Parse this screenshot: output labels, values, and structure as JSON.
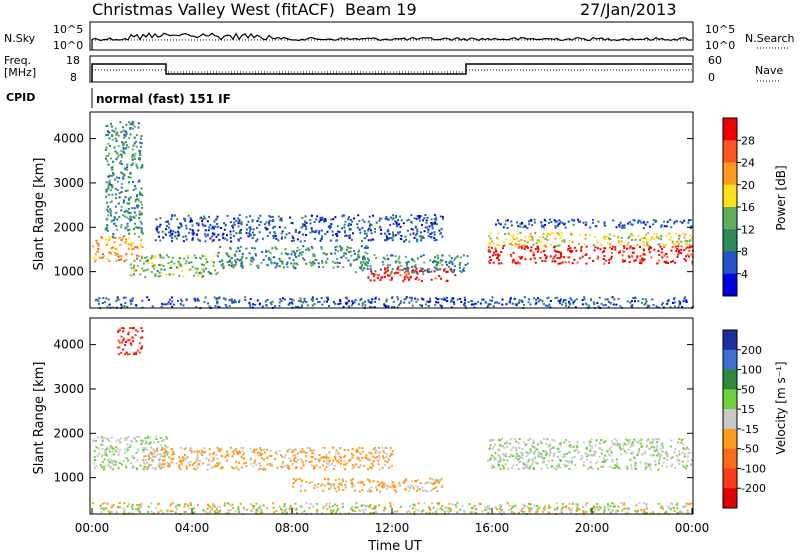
{
  "header": {
    "title": "Christmas Valley West (fitACF)",
    "beam": "Beam 19",
    "date": "27/Jan/2013"
  },
  "top_panels": {
    "nsky_label": "N.Sky",
    "nsky_ticks": [
      "10^5",
      "10^0"
    ],
    "nsearch_label": "N.Search",
    "nsearch_ticks": [
      "10^5",
      "10^0"
    ],
    "freq_label": "Freq.",
    "freq_unit": "[MHz]",
    "freq_ticks": [
      "18",
      "8"
    ],
    "nave_label": "Nave",
    "nave_ticks": [
      "60",
      "0"
    ],
    "cpid_label": "CPID",
    "cpid_value": "normal (fast) 151 IF"
  },
  "colors": {
    "velocity_positive": "#1f3fbf",
    "velocity_ground": "#c0c0bc",
    "velocity_negative": "#f29a1c"
  },
  "chart_data": [
    {
      "type": "heatmap",
      "title": "",
      "xlabel": "",
      "ylabel": "Slant Range [km]",
      "xlim": [
        "00:00",
        "00:00"
      ],
      "ylim": [
        180,
        4600
      ],
      "y_ticks": [
        "1000",
        "2000",
        "3000",
        "4000"
      ],
      "colorbar_label": "Power [dB]",
      "colorbar_ticks": [
        "4",
        "8",
        "12",
        "16",
        "20",
        "24",
        "28"
      ],
      "colorbar_colors": [
        "#0000dd",
        "#2255cc",
        "#2e8a5a",
        "#5fae5f",
        "#ffe21a",
        "#ff9a1a",
        "#ff5522",
        "#ee0000"
      ],
      "echo_regions": [
        {
          "t0": 0.0,
          "t1": 2.0,
          "r0": 1250,
          "r1": 1800,
          "level": 5
        },
        {
          "t0": 0.5,
          "t1": 2.0,
          "r0": 1800,
          "r1": 4400,
          "level": 2
        },
        {
          "t0": 1.5,
          "t1": 5.0,
          "r0": 900,
          "r1": 1400,
          "level": 3
        },
        {
          "t0": 5.0,
          "t1": 11.0,
          "r0": 1100,
          "r1": 1600,
          "level": 2
        },
        {
          "t0": 2.5,
          "t1": 14.0,
          "r0": 1700,
          "r1": 2300,
          "level": 1
        },
        {
          "t0": 11.0,
          "t1": 14.5,
          "r0": 800,
          "r1": 1100,
          "level": 7
        },
        {
          "t0": 10.5,
          "t1": 15.0,
          "r0": 1000,
          "r1": 1400,
          "level": 2
        },
        {
          "t0": 15.8,
          "t1": 24.0,
          "r0": 1200,
          "r1": 1600,
          "level": 7
        },
        {
          "t0": 15.8,
          "t1": 24.0,
          "r0": 1600,
          "r1": 1900,
          "level": 4
        },
        {
          "t0": 16.0,
          "t1": 24.0,
          "r0": 2000,
          "r1": 2200,
          "level": 1
        },
        {
          "t0": 0.0,
          "t1": 24.0,
          "r0": 200,
          "r1": 450,
          "level": 1
        }
      ]
    },
    {
      "type": "heatmap",
      "title": "",
      "xlabel": "Time UT",
      "ylabel": "Slant Range [km]",
      "x_ticks": [
        "00:00",
        "04:00",
        "08:00",
        "12:00",
        "16:00",
        "20:00",
        "00:00"
      ],
      "ylim": [
        180,
        4600
      ],
      "y_ticks": [
        "1000",
        "2000",
        "3000",
        "4000"
      ],
      "colorbar_label": "Velocity [m s⁻¹]",
      "colorbar_ticks": [
        "200",
        "100",
        "50",
        "15",
        "-15",
        "-50",
        "-100",
        "-200"
      ],
      "colorbar_colors": [
        "#1c2fa0",
        "#3d6fd0",
        "#2e8a3a",
        "#6ccf3c",
        "#c8c8c8",
        "#ff9a1a",
        "#ff6a1a",
        "#ff3a1a",
        "#e00000"
      ],
      "echo_regions": [
        {
          "t0": 0.0,
          "t1": 3.0,
          "r0": 1200,
          "r1": 1950,
          "cls": "ground"
        },
        {
          "t0": 2.0,
          "t1": 12.0,
          "r0": 1200,
          "r1": 1700,
          "cls": "negative"
        },
        {
          "t0": 8.0,
          "t1": 14.0,
          "r0": 700,
          "r1": 1000,
          "cls": "negative"
        },
        {
          "t0": 15.8,
          "t1": 24.0,
          "r0": 1200,
          "r1": 1900,
          "cls": "ground"
        },
        {
          "t0": 1.0,
          "t1": 2.0,
          "r0": 3800,
          "r1": 4400,
          "cls": "strong_negative"
        },
        {
          "t0": 0.0,
          "t1": 24.0,
          "r0": 200,
          "r1": 450,
          "cls": "low_velocity"
        }
      ]
    }
  ]
}
